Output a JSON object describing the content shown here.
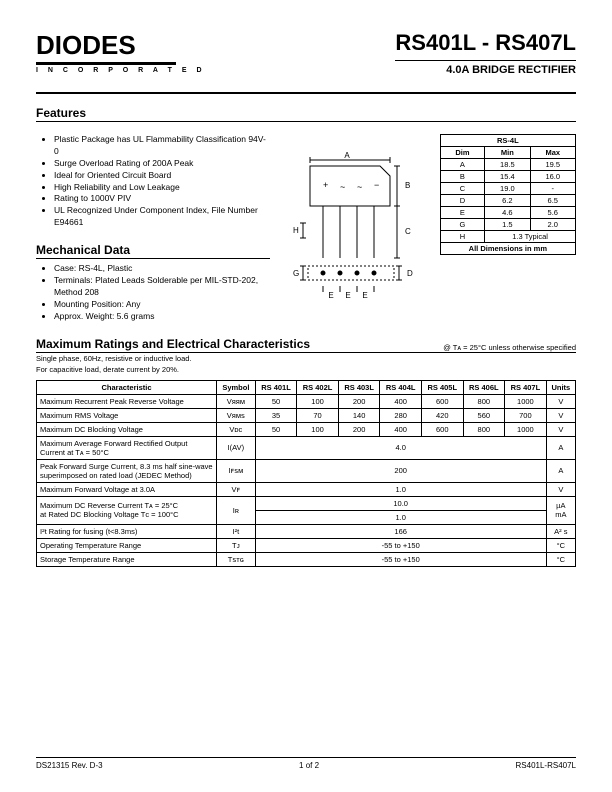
{
  "header": {
    "logo_text": "DIODES",
    "logo_sub": "I N C O R P O R A T E D",
    "title": "RS401L - RS407L",
    "subtitle": "4.0A  BRIDGE RECTIFIER"
  },
  "features": {
    "heading": "Features",
    "items": [
      "Plastic Package has UL Flammability Classification 94V-0",
      "Surge Overload Rating of 200A Peak",
      "Ideal for Oriented Circuit Board",
      "High Reliability and Low Leakage",
      "Rating to 1000V PIV",
      "UL Recognized Under Component Index, File Number E94661"
    ]
  },
  "mechanical": {
    "heading": "Mechanical Data",
    "items": [
      "Case: RS-4L, Plastic",
      "Terminals: Plated Leads Solderable per MIL-STD-202, Method 208",
      "Mounting Position: Any",
      "Approx. Weight: 5.6 grams"
    ]
  },
  "dim_table": {
    "title": "RS-4L",
    "headers": [
      "Dim",
      "Min",
      "Max"
    ],
    "rows": [
      [
        "A",
        "18.5",
        "19.5"
      ],
      [
        "B",
        "15.4",
        "16.0"
      ],
      [
        "C",
        "19.0",
        "-"
      ],
      [
        "D",
        "6.2",
        "6.5"
      ],
      [
        "E",
        "4.6",
        "5.6"
      ],
      [
        "G",
        "1.5",
        "2.0"
      ]
    ],
    "h_row": [
      "H",
      "1.3 Typical"
    ],
    "footer": "All Dimensions in mm"
  },
  "max": {
    "heading": "Maximum Ratings and Electrical Characteristics",
    "note": "@ Tᴀ = 25°C unless otherwise specified",
    "sub1": "Single phase, 60Hz, resistive or inductive load.",
    "sub2": "For capacitive load, derate current by 20%.",
    "headers": [
      "Characteristic",
      "Symbol",
      "RS 401L",
      "RS 402L",
      "RS 403L",
      "RS 404L",
      "RS 405L",
      "RS 406L",
      "RS 407L",
      "Units"
    ],
    "rows": [
      {
        "c": "Maximum Recurrent Peak Reverse Voltage",
        "s": "Vᴙᴙᴍ",
        "v": [
          "50",
          "100",
          "200",
          "400",
          "600",
          "800",
          "1000"
        ],
        "u": "V"
      },
      {
        "c": "Maximum RMS Voltage",
        "s": "Vᴙᴍꜱ",
        "v": [
          "35",
          "70",
          "140",
          "280",
          "420",
          "560",
          "700"
        ],
        "u": "V"
      },
      {
        "c": "Maximum DC Blocking Voltage",
        "s": "Vᴅᴄ",
        "v": [
          "50",
          "100",
          "200",
          "400",
          "600",
          "800",
          "1000"
        ],
        "u": "V"
      },
      {
        "c": "Maximum Average Forward Rectified Output Current at Tᴀ = 50°C",
        "s": "I(AV)",
        "span": "4.0",
        "u": "A"
      },
      {
        "c": "Peak Forward Surge Current, 8.3 ms half sine-wave superimposed on rated load (JEDEC Method)",
        "s": "Iꜰꜱᴍ",
        "span": "200",
        "u": "A"
      },
      {
        "c": "Maximum Forward Voltage at 3.0A",
        "s": "Vꜰ",
        "span": "1.0",
        "u": "V"
      },
      {
        "c": "Maximum DC Reverse Current            Tᴀ =  25°C\nat Rated DC Blocking Voltage          Tᴄ = 100°C",
        "s": "Iʀ",
        "span2": [
          "10.0",
          "1.0"
        ],
        "u": "µA\nmA"
      },
      {
        "c": "I²t Rating for fusing (t<8.3ms)",
        "s": "I²t",
        "span": "166",
        "u": "A² s"
      },
      {
        "c": "Operating Temperature Range",
        "s": "Tᴊ",
        "span": "-55 to +150",
        "u": "°C"
      },
      {
        "c": "Storage Temperature Range",
        "s": "Tꜱᴛɢ",
        "span": "-55 to +150",
        "u": "°C"
      }
    ]
  },
  "footer": {
    "left": "DS21315 Rev. D-3",
    "mid": "1 of 2",
    "right": "RS401L-RS407L"
  }
}
